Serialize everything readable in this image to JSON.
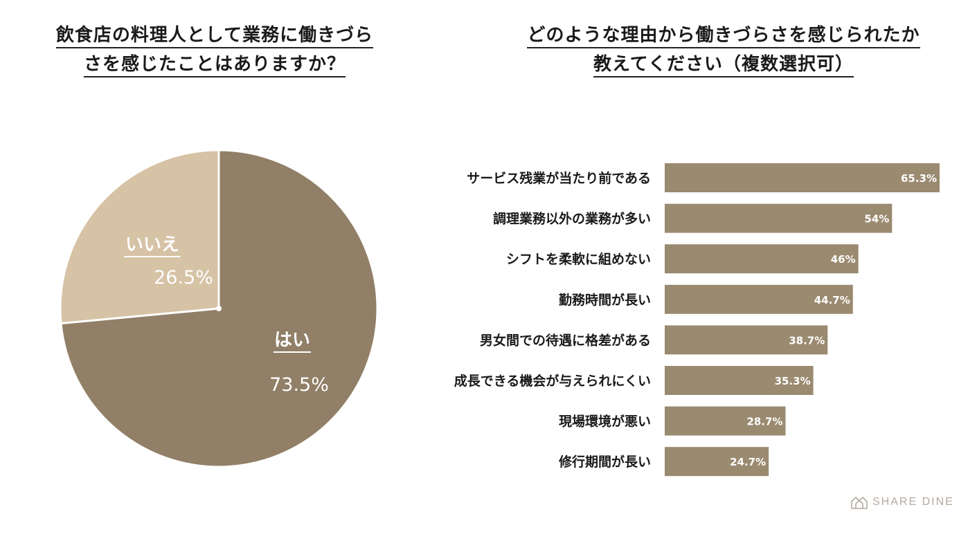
{
  "left_title": {
    "line1": "飲食店の料理人として業務に働きづら",
    "line2": "さを感じたことはありますか？"
  },
  "right_title": {
    "line1": "どのような理由から働きづらさを感じられたか",
    "line2": "教えてください（複数選択可）"
  },
  "chart_data": [
    {
      "type": "pie",
      "slices": [
        {
          "label": "はい",
          "value": 73.5,
          "display": "73.5%",
          "color": "#917f67"
        },
        {
          "label": "いいえ",
          "value": 26.5,
          "display": "26.5%",
          "color": "#d6c2a5"
        }
      ]
    },
    {
      "type": "bar",
      "orientation": "horizontal",
      "categories": [
        "サービス残業が当たり前である",
        "調理業務以外の業務が多い",
        "シフトを柔軟に組めない",
        "勤務時間が長い",
        "男女間での待遇に格差がある",
        "成長できる機会が与えられにくい",
        "現場環境が悪い",
        "修行期間が長い"
      ],
      "values": [
        65.3,
        54,
        46,
        44.7,
        38.7,
        35.3,
        28.7,
        24.7
      ],
      "value_labels": [
        "65.3%",
        "54%",
        "46%",
        "44.7%",
        "38.7%",
        "35.3%",
        "28.7%",
        "24.7%"
      ],
      "xlim": [
        0,
        65.3
      ],
      "bar_color": "#9a8a70"
    }
  ],
  "logo": {
    "text": "SHARE DINE",
    "color": "#b3ab9f"
  }
}
